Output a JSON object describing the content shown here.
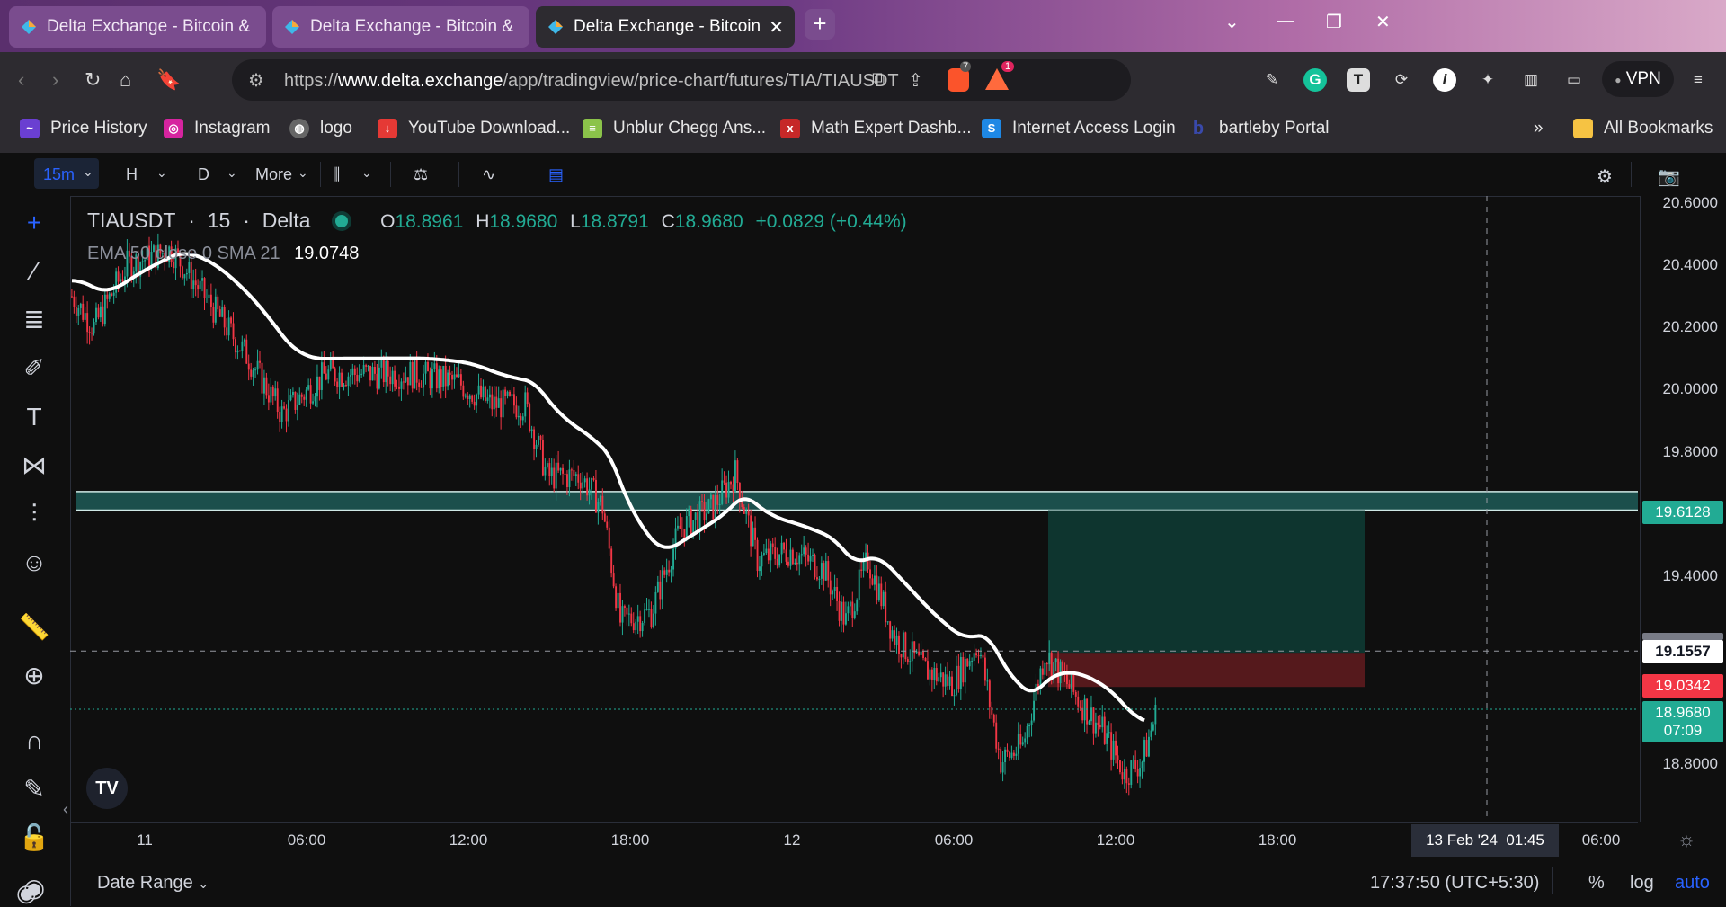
{
  "browser": {
    "tabs": [
      {
        "title": "Delta Exchange - Bitcoin & Ethereum",
        "active": false
      },
      {
        "title": "Delta Exchange - Bitcoin & Ethereum",
        "active": false
      },
      {
        "title": "Delta Exchange - Bitcoin & Ether",
        "active": true
      }
    ],
    "url_prefix": "https://",
    "url_domain": "www.delta.exchange",
    "url_path": "/app/tradingview/price-chart/futures/TIA/TIAUSDT",
    "brave_badge": "7",
    "alert_badge": "1",
    "vpn_label": "VPN",
    "bookmarks": [
      {
        "label": "Price History",
        "icon": "chart-favicon",
        "color": "#6a3fd1"
      },
      {
        "label": "Instagram",
        "icon": "instagram-favicon",
        "color": "#d6249f"
      },
      {
        "label": "logo",
        "icon": "globe-favicon",
        "color": "#888888"
      },
      {
        "label": "YouTube Download...",
        "icon": "download-favicon",
        "color": "#e53935"
      },
      {
        "label": "Unblur Chegg Ans...",
        "icon": "books-favicon",
        "color": "#8bc34a"
      },
      {
        "label": "Math Expert Dashb...",
        "icon": "math-favicon",
        "color": "#c62828"
      },
      {
        "label": "Internet Access Login",
        "icon": "s-favicon",
        "color": "#1e88e5"
      },
      {
        "label": "bartleby Portal",
        "icon": "b-favicon",
        "color": "#3949ab"
      }
    ],
    "bookmarks_overflow": "»",
    "all_bookmarks": "All Bookmarks"
  },
  "toolbar": {
    "interval": "15m",
    "h_label": "H",
    "d_label": "D",
    "more_label": "More"
  },
  "legend": {
    "symbol": "TIAUSDT",
    "interval": "15",
    "exchange": "Delta",
    "o_label": "O",
    "o_value": "18.8961",
    "h_label": "H",
    "h_value": "18.9680",
    "l_label": "L",
    "l_value": "18.8791",
    "c_label": "C",
    "c_value": "18.9680",
    "change": "+0.0829 (+0.44%)",
    "indicator_name": "EMA 50 close 0 SMA 21",
    "indicator_value": "19.0748"
  },
  "chart_data": {
    "type": "candlestick",
    "symbol": "TIAUSDT",
    "interval": "15",
    "yticks": [
      "20.6000",
      "20.4000",
      "20.2000",
      "20.0000",
      "19.8000",
      "19.4000",
      "18.8000"
    ],
    "ylim": [
      18.68,
      20.62
    ],
    "xticks": [
      "11",
      "06:00",
      "12:00",
      "18:00",
      "12",
      "06:00",
      "12:00",
      "18:00",
      "06:00"
    ],
    "x_cursor_label": "13 Feb '24  01:45",
    "price_labels": {
      "zone_top": "19.6128",
      "crosshair": "19.1557",
      "stop": "19.0342",
      "last": "18.9680",
      "countdown": "07:09"
    },
    "zone": [
      19.61,
      19.67
    ],
    "long_position": {
      "entry": 19.15,
      "target": 19.61,
      "stop": 19.04
    },
    "ohlc_last": {
      "open": 18.8961,
      "high": 18.968,
      "low": 18.8791,
      "close": 18.968
    },
    "ema_value": 19.0748,
    "colors": {
      "up": "#22ab94",
      "down": "#f23645",
      "ema": "#ffffff",
      "zone": "#1b4f4c"
    }
  },
  "bottom": {
    "date_range": "Date Range",
    "clock": "17:37:50 (UTC+5:30)",
    "percent": "%",
    "log": "log",
    "auto": "auto"
  }
}
